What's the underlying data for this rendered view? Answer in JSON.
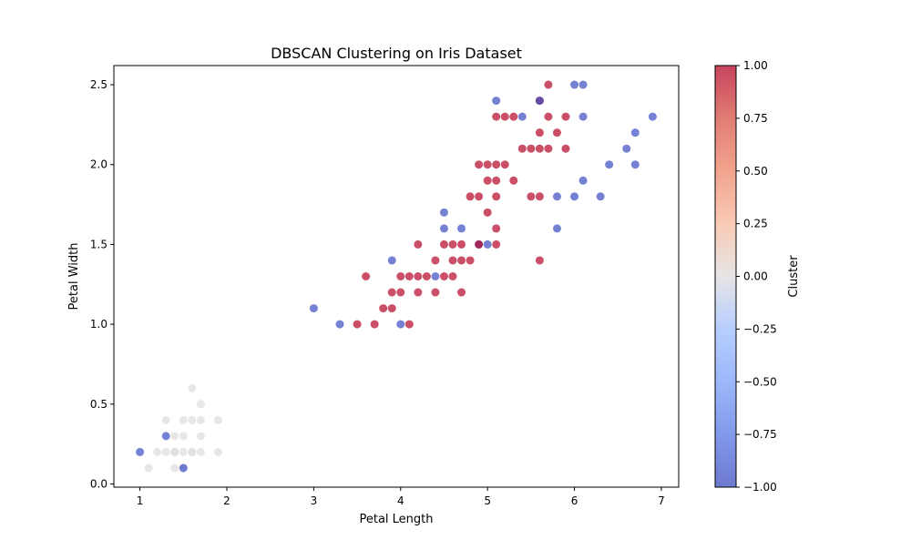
{
  "chart_data": {
    "type": "scatter",
    "title": "DBSCAN Clustering on Iris Dataset",
    "xlabel": "Petal Length",
    "ylabel": "Petal Width",
    "xlim": [
      0.7,
      7.2
    ],
    "ylim": [
      -0.02,
      2.62
    ],
    "xticks": [
      1,
      2,
      3,
      4,
      5,
      6,
      7
    ],
    "yticks": [
      0.0,
      0.5,
      1.0,
      1.5,
      2.0,
      2.5
    ],
    "xtick_labels": [
      "1",
      "2",
      "3",
      "4",
      "5",
      "6",
      "7"
    ],
    "ytick_labels": [
      "0.0",
      "0.5",
      "1.0",
      "1.5",
      "2.0",
      "2.5"
    ],
    "grid": false,
    "colormap": "coolwarm",
    "colorbar": {
      "label": "Cluster",
      "range": [
        -1.0,
        1.0
      ],
      "ticks": [
        1.0,
        0.75,
        0.5,
        0.25,
        0.0,
        -0.25,
        -0.5,
        -0.75,
        -1.0
      ],
      "tick_labels": [
        "1.00",
        "0.75",
        "0.50",
        "0.25",
        "0.00",
        "−0.25",
        "−0.50",
        "−0.75",
        "−1.00"
      ]
    },
    "colors": {
      "cluster_-1": "#3b4cc0",
      "cluster_0": "#dddddd",
      "cluster_1": "#b40426"
    },
    "points": [
      {
        "x": 1.4,
        "y": 0.2,
        "c": 0
      },
      {
        "x": 1.3,
        "y": 0.2,
        "c": 0
      },
      {
        "x": 1.5,
        "y": 0.2,
        "c": 0
      },
      {
        "x": 1.7,
        "y": 0.4,
        "c": 0
      },
      {
        "x": 1.4,
        "y": 0.3,
        "c": 0
      },
      {
        "x": 1.5,
        "y": 0.1,
        "c": 0
      },
      {
        "x": 1.6,
        "y": 0.2,
        "c": 0
      },
      {
        "x": 1.1,
        "y": 0.1,
        "c": 0
      },
      {
        "x": 1.2,
        "y": 0.2,
        "c": 0
      },
      {
        "x": 1.5,
        "y": 0.4,
        "c": 0
      },
      {
        "x": 1.3,
        "y": 0.4,
        "c": 0
      },
      {
        "x": 1.7,
        "y": 0.3,
        "c": 0
      },
      {
        "x": 1.4,
        "y": 0.1,
        "c": 0
      },
      {
        "x": 1.6,
        "y": 0.4,
        "c": 0
      },
      {
        "x": 1.9,
        "y": 0.2,
        "c": 0
      },
      {
        "x": 1.6,
        "y": 0.6,
        "c": 0
      },
      {
        "x": 1.9,
        "y": 0.4,
        "c": 0
      },
      {
        "x": 1.7,
        "y": 0.5,
        "c": 0
      },
      {
        "x": 1.7,
        "y": 0.2,
        "c": 0
      },
      {
        "x": 1.5,
        "y": 0.3,
        "c": 0
      },
      {
        "x": 1.6,
        "y": 0.2,
        "c": 0
      },
      {
        "x": 1.3,
        "y": 0.3,
        "c": -1
      },
      {
        "x": 1.0,
        "y": 0.2,
        "c": -1
      },
      {
        "x": 1.5,
        "y": 0.1,
        "c": -1
      },
      {
        "x": 1.4,
        "y": 0.2,
        "c": 0
      },
      {
        "x": 3.0,
        "y": 1.1,
        "c": -1
      },
      {
        "x": 3.3,
        "y": 1.0,
        "c": -1
      },
      {
        "x": 3.5,
        "y": 1.0,
        "c": 1
      },
      {
        "x": 3.6,
        "y": 1.3,
        "c": 1
      },
      {
        "x": 3.7,
        "y": 1.0,
        "c": 1
      },
      {
        "x": 3.8,
        "y": 1.1,
        "c": 1
      },
      {
        "x": 3.9,
        "y": 1.1,
        "c": 1
      },
      {
        "x": 3.9,
        "y": 1.2,
        "c": 1
      },
      {
        "x": 3.9,
        "y": 1.4,
        "c": -1
      },
      {
        "x": 4.0,
        "y": 1.0,
        "c": -1
      },
      {
        "x": 4.0,
        "y": 1.2,
        "c": 1
      },
      {
        "x": 4.0,
        "y": 1.3,
        "c": 1
      },
      {
        "x": 4.1,
        "y": 1.0,
        "c": 1
      },
      {
        "x": 4.1,
        "y": 1.3,
        "c": 1
      },
      {
        "x": 4.2,
        "y": 1.2,
        "c": 1
      },
      {
        "x": 4.2,
        "y": 1.3,
        "c": 1
      },
      {
        "x": 4.2,
        "y": 1.5,
        "c": 1
      },
      {
        "x": 4.3,
        "y": 1.3,
        "c": 1
      },
      {
        "x": 4.4,
        "y": 1.2,
        "c": 1
      },
      {
        "x": 4.4,
        "y": 1.3,
        "c": -1
      },
      {
        "x": 4.4,
        "y": 1.4,
        "c": 1
      },
      {
        "x": 4.5,
        "y": 1.3,
        "c": 1
      },
      {
        "x": 4.5,
        "y": 1.5,
        "c": 1
      },
      {
        "x": 4.5,
        "y": 1.6,
        "c": -1
      },
      {
        "x": 4.5,
        "y": 1.7,
        "c": -1
      },
      {
        "x": 4.6,
        "y": 1.3,
        "c": 1
      },
      {
        "x": 4.6,
        "y": 1.4,
        "c": 1
      },
      {
        "x": 4.6,
        "y": 1.5,
        "c": 1
      },
      {
        "x": 4.7,
        "y": 1.2,
        "c": 1
      },
      {
        "x": 4.7,
        "y": 1.4,
        "c": 1
      },
      {
        "x": 4.7,
        "y": 1.5,
        "c": 1
      },
      {
        "x": 4.7,
        "y": 1.6,
        "c": -1
      },
      {
        "x": 4.8,
        "y": 1.4,
        "c": 1
      },
      {
        "x": 4.8,
        "y": 1.8,
        "c": 1
      },
      {
        "x": 4.9,
        "y": 1.5,
        "c": -1
      },
      {
        "x": 4.9,
        "y": 1.5,
        "c": 1
      },
      {
        "x": 4.9,
        "y": 1.8,
        "c": 1
      },
      {
        "x": 4.9,
        "y": 2.0,
        "c": 1
      },
      {
        "x": 5.0,
        "y": 1.5,
        "c": -1
      },
      {
        "x": 5.0,
        "y": 1.7,
        "c": 1
      },
      {
        "x": 5.0,
        "y": 1.9,
        "c": 1
      },
      {
        "x": 5.0,
        "y": 2.0,
        "c": 1
      },
      {
        "x": 5.1,
        "y": 1.5,
        "c": 1
      },
      {
        "x": 5.1,
        "y": 1.6,
        "c": 1
      },
      {
        "x": 5.1,
        "y": 1.8,
        "c": 1
      },
      {
        "x": 5.1,
        "y": 1.9,
        "c": 1
      },
      {
        "x": 5.1,
        "y": 2.0,
        "c": 1
      },
      {
        "x": 5.1,
        "y": 2.3,
        "c": 1
      },
      {
        "x": 5.1,
        "y": 2.4,
        "c": -1
      },
      {
        "x": 5.2,
        "y": 2.0,
        "c": 1
      },
      {
        "x": 5.2,
        "y": 2.3,
        "c": 1
      },
      {
        "x": 5.3,
        "y": 1.9,
        "c": 1
      },
      {
        "x": 5.3,
        "y": 2.3,
        "c": 1
      },
      {
        "x": 5.4,
        "y": 2.1,
        "c": 1
      },
      {
        "x": 5.4,
        "y": 2.3,
        "c": -1
      },
      {
        "x": 5.5,
        "y": 1.8,
        "c": 1
      },
      {
        "x": 5.5,
        "y": 2.1,
        "c": 1
      },
      {
        "x": 5.6,
        "y": 1.4,
        "c": 1
      },
      {
        "x": 5.6,
        "y": 1.8,
        "c": 1
      },
      {
        "x": 5.6,
        "y": 2.1,
        "c": 1
      },
      {
        "x": 5.6,
        "y": 2.2,
        "c": 1
      },
      {
        "x": 5.6,
        "y": 2.4,
        "c": 1
      },
      {
        "x": 5.6,
        "y": 2.4,
        "c": -1
      },
      {
        "x": 5.7,
        "y": 2.1,
        "c": 1
      },
      {
        "x": 5.7,
        "y": 2.3,
        "c": 1
      },
      {
        "x": 5.7,
        "y": 2.5,
        "c": 1
      },
      {
        "x": 5.8,
        "y": 1.6,
        "c": -1
      },
      {
        "x": 5.8,
        "y": 1.8,
        "c": -1
      },
      {
        "x": 5.8,
        "y": 2.2,
        "c": 1
      },
      {
        "x": 5.9,
        "y": 2.1,
        "c": 1
      },
      {
        "x": 5.9,
        "y": 2.3,
        "c": 1
      },
      {
        "x": 6.0,
        "y": 1.8,
        "c": -1
      },
      {
        "x": 6.0,
        "y": 2.5,
        "c": -1
      },
      {
        "x": 6.1,
        "y": 1.9,
        "c": -1
      },
      {
        "x": 6.1,
        "y": 2.3,
        "c": -1
      },
      {
        "x": 6.1,
        "y": 2.5,
        "c": -1
      },
      {
        "x": 6.3,
        "y": 1.8,
        "c": -1
      },
      {
        "x": 6.4,
        "y": 2.0,
        "c": -1
      },
      {
        "x": 6.6,
        "y": 2.1,
        "c": -1
      },
      {
        "x": 6.7,
        "y": 2.0,
        "c": -1
      },
      {
        "x": 6.7,
        "y": 2.2,
        "c": -1
      },
      {
        "x": 6.9,
        "y": 2.3,
        "c": -1
      }
    ]
  }
}
